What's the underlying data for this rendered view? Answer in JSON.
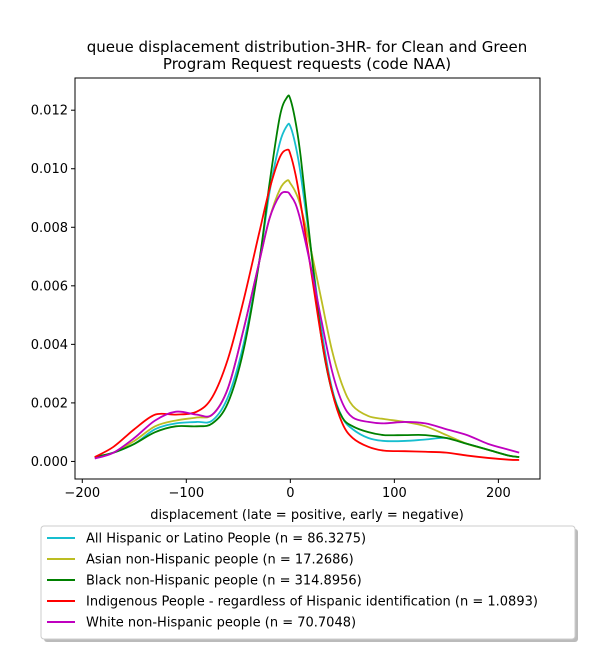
{
  "chart_data": {
    "type": "line",
    "title_lines": [
      "queue displacement distribution-3HR-  for Clean and Green",
      "Program Request  requests (code NAA)"
    ],
    "xlabel": "displacement (late = positive, early = negative)",
    "ylabel": "",
    "xlim": [
      -207,
      240
    ],
    "ylim": [
      -0.0006,
      0.0131
    ],
    "xticks": [
      -200,
      -100,
      0,
      100,
      200
    ],
    "xtick_labels": [
      "−200",
      "−100",
      "0",
      "100",
      "200"
    ],
    "yticks": [
      0.0,
      0.002,
      0.004,
      0.006,
      0.008,
      0.01,
      0.012
    ],
    "ytick_labels": [
      "0.000",
      "0.002",
      "0.004",
      "0.006",
      "0.008",
      "0.010",
      "0.012"
    ],
    "grid": false,
    "legend_position": "below plot",
    "series": [
      {
        "name": "All Hispanic or Latino People (n = 86.3275)",
        "color": "#17becf",
        "x": [
          -188,
          -170,
          -150,
          -130,
          -110,
          -90,
          -75,
          -60,
          -45,
          -30,
          -20,
          -10,
          -3,
          0,
          5,
          10,
          20,
          30,
          40,
          50,
          60,
          75,
          90,
          110,
          130,
          150,
          170,
          190,
          210,
          220
        ],
        "y": [
          0.00012,
          0.0003,
          0.0006,
          0.0011,
          0.0013,
          0.00135,
          0.0014,
          0.0022,
          0.004,
          0.0068,
          0.0092,
          0.0109,
          0.01148,
          0.01145,
          0.0108,
          0.0098,
          0.0072,
          0.0045,
          0.0025,
          0.0015,
          0.0011,
          0.0008,
          0.0007,
          0.0007,
          0.00075,
          0.0008,
          0.0006,
          0.0004,
          0.0002,
          0.00015
        ]
      },
      {
        "name": "Asian non-Hispanic people (n = 17.2686)",
        "color": "#bcbd22",
        "x": [
          -188,
          -170,
          -150,
          -130,
          -110,
          -90,
          -75,
          -60,
          -45,
          -30,
          -20,
          -10,
          -3,
          0,
          5,
          10,
          20,
          30,
          40,
          50,
          60,
          75,
          90,
          110,
          130,
          150,
          170,
          190,
          210,
          220
        ],
        "y": [
          0.00015,
          0.0003,
          0.0007,
          0.0012,
          0.0014,
          0.0015,
          0.0016,
          0.0025,
          0.0045,
          0.0068,
          0.0083,
          0.0093,
          0.0096,
          0.0095,
          0.0092,
          0.0087,
          0.0072,
          0.0055,
          0.0038,
          0.0026,
          0.0019,
          0.00155,
          0.00145,
          0.00135,
          0.0012,
          0.0009,
          0.0006,
          0.0004,
          0.0002,
          0.00015
        ]
      },
      {
        "name": "Black non-Hispanic people (n = 314.8956)",
        "color": "#008000",
        "x": [
          -188,
          -170,
          -150,
          -130,
          -110,
          -90,
          -75,
          -60,
          -45,
          -30,
          -20,
          -10,
          -3,
          0,
          5,
          10,
          20,
          30,
          40,
          50,
          60,
          75,
          90,
          110,
          130,
          150,
          170,
          190,
          210,
          220
        ],
        "y": [
          0.00015,
          0.0003,
          0.0006,
          0.001,
          0.0012,
          0.0012,
          0.0013,
          0.002,
          0.0038,
          0.0068,
          0.0095,
          0.0118,
          0.01245,
          0.01238,
          0.0116,
          0.0104,
          0.0072,
          0.0042,
          0.0024,
          0.0015,
          0.0012,
          0.001,
          0.0009,
          0.0009,
          0.0009,
          0.0008,
          0.0006,
          0.0004,
          0.0002,
          0.00015
        ]
      },
      {
        "name": "Indigenous People - regardless of Hispanic identification (n = 1.0893)",
        "color": "#ff0000",
        "x": [
          -188,
          -170,
          -150,
          -130,
          -110,
          -90,
          -75,
          -60,
          -45,
          -30,
          -20,
          -10,
          -3,
          0,
          5,
          10,
          20,
          30,
          40,
          50,
          60,
          75,
          90,
          110,
          130,
          150,
          170,
          190,
          210,
          220
        ],
        "y": [
          0.00015,
          0.0005,
          0.0011,
          0.0016,
          0.0016,
          0.0017,
          0.0022,
          0.0035,
          0.0055,
          0.0078,
          0.0093,
          0.0104,
          0.01065,
          0.0105,
          0.0098,
          0.0088,
          0.0065,
          0.0042,
          0.0024,
          0.0013,
          0.0008,
          0.0005,
          0.00037,
          0.00035,
          0.00033,
          0.0003,
          0.0002,
          0.00012,
          6e-05,
          5e-05
        ]
      },
      {
        "name": "White non-Hispanic people (n = 70.7048)",
        "color": "#bf00bf",
        "x": [
          -188,
          -170,
          -150,
          -130,
          -110,
          -90,
          -75,
          -60,
          -45,
          -30,
          -20,
          -10,
          -3,
          0,
          5,
          10,
          20,
          30,
          40,
          50,
          60,
          75,
          90,
          110,
          130,
          150,
          170,
          190,
          210,
          220
        ],
        "y": [
          0.0001,
          0.0003,
          0.0008,
          0.0014,
          0.0017,
          0.0016,
          0.0016,
          0.0025,
          0.0045,
          0.0068,
          0.0083,
          0.0091,
          0.0092,
          0.0091,
          0.0088,
          0.0082,
          0.0066,
          0.0048,
          0.0031,
          0.002,
          0.0015,
          0.00135,
          0.0013,
          0.00135,
          0.0013,
          0.0011,
          0.0009,
          0.0006,
          0.0004,
          0.0003
        ]
      }
    ]
  }
}
